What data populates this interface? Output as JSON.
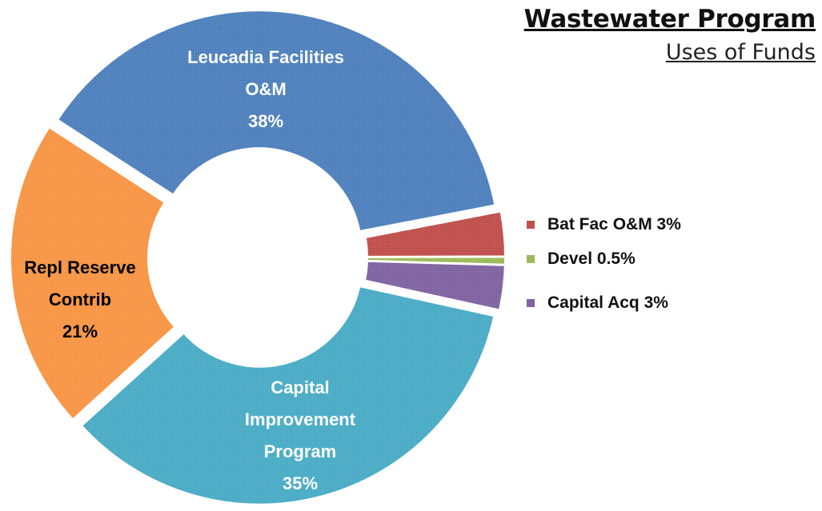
{
  "chart_data": {
    "type": "donut",
    "title": "Wastewater Program",
    "subtitle": "Uses of Funds",
    "categories": [
      "Leucadia Facilities O&M",
      "Bat Fac O&M",
      "Devel",
      "Capital Acq",
      "Capital Improvement Program",
      "Repl Reserve Contrib"
    ],
    "values": [
      38,
      3,
      0.5,
      3,
      35,
      21
    ],
    "value_labels": [
      "38%",
      "3%",
      "0.5%",
      "3%",
      "35%",
      "21%"
    ],
    "colors": [
      "#4f81bd",
      "#c0504d",
      "#9bbb59",
      "#8064a2",
      "#4bacc6",
      "#f79646"
    ]
  }
}
